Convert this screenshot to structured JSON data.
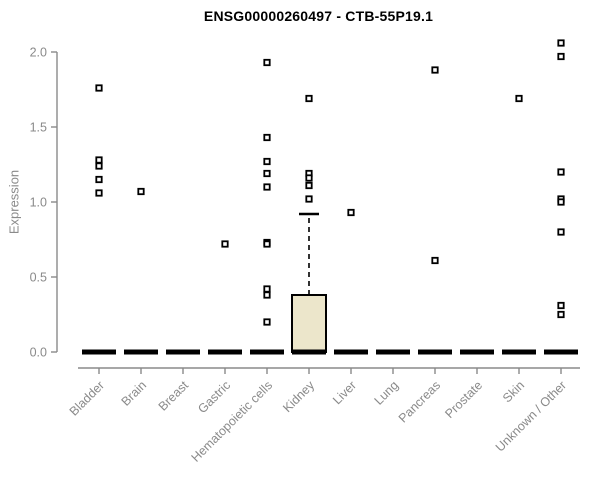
{
  "chart_data": {
    "type": "boxplot",
    "title": "ENSG00000260497 - CTB-55P19.1",
    "ylabel": "Expression",
    "xlabel": "",
    "ylim": [
      0.0,
      2.05
    ],
    "yticks": [
      0.0,
      0.5,
      1.0,
      1.5,
      2.0
    ],
    "grid": false,
    "legend": "none",
    "categories": [
      "Bladder",
      "Brain",
      "Breast",
      "Gastric",
      "Hematopoietic cells",
      "Kidney",
      "Liver",
      "Lung",
      "Pancreas",
      "Prostate",
      "Skin",
      "Unknown / Other"
    ],
    "series": [
      {
        "name": "Bladder",
        "box": {
          "whisker_low": 0,
          "q1": 0,
          "median": 0,
          "q3": 0,
          "whisker_high": 0
        },
        "outliers": [
          1.76,
          1.28,
          1.24,
          1.15,
          1.06
        ]
      },
      {
        "name": "Brain",
        "box": {
          "whisker_low": 0,
          "q1": 0,
          "median": 0,
          "q3": 0,
          "whisker_high": 0
        },
        "outliers": [
          1.07
        ]
      },
      {
        "name": "Breast",
        "box": {
          "whisker_low": 0,
          "q1": 0,
          "median": 0,
          "q3": 0,
          "whisker_high": 0
        },
        "outliers": []
      },
      {
        "name": "Gastric",
        "box": {
          "whisker_low": 0,
          "q1": 0,
          "median": 0,
          "q3": 0,
          "whisker_high": 0
        },
        "outliers": [
          0.72
        ]
      },
      {
        "name": "Hematopoietic cells",
        "box": {
          "whisker_low": 0,
          "q1": 0,
          "median": 0,
          "q3": 0,
          "whisker_high": 0
        },
        "outliers": [
          1.93,
          1.43,
          1.27,
          1.19,
          1.1,
          0.73,
          0.72,
          0.42,
          0.38,
          0.2
        ]
      },
      {
        "name": "Kidney",
        "box": {
          "whisker_low": 0,
          "q1": 0,
          "median": 0,
          "q3": 0.38,
          "whisker_high": 0.92
        },
        "outliers": [
          1.69,
          1.19,
          1.16,
          1.11,
          1.02
        ]
      },
      {
        "name": "Liver",
        "box": {
          "whisker_low": 0,
          "q1": 0,
          "median": 0,
          "q3": 0,
          "whisker_high": 0
        },
        "outliers": [
          0.93
        ]
      },
      {
        "name": "Lung",
        "box": {
          "whisker_low": 0,
          "q1": 0,
          "median": 0,
          "q3": 0,
          "whisker_high": 0
        },
        "outliers": []
      },
      {
        "name": "Pancreas",
        "box": {
          "whisker_low": 0,
          "q1": 0,
          "median": 0,
          "q3": 0,
          "whisker_high": 0
        },
        "outliers": [
          1.88,
          0.61
        ]
      },
      {
        "name": "Prostate",
        "box": {
          "whisker_low": 0,
          "q1": 0,
          "median": 0,
          "q3": 0,
          "whisker_high": 0
        },
        "outliers": []
      },
      {
        "name": "Skin",
        "box": {
          "whisker_low": 0,
          "q1": 0,
          "median": 0,
          "q3": 0,
          "whisker_high": 0
        },
        "outliers": [
          1.69
        ]
      },
      {
        "name": "Unknown / Other",
        "box": {
          "whisker_low": 0,
          "q1": 0,
          "median": 0,
          "q3": 0,
          "whisker_high": 0
        },
        "outliers": [
          2.06,
          1.97,
          1.2,
          1.02,
          1.0,
          0.8,
          0.31,
          0.25
        ]
      }
    ],
    "colors": {
      "background": "#ffffff",
      "box_fill": "#ECE6CB",
      "box_stroke": "#000000",
      "median": "#000000",
      "whisker": "#000000",
      "outlier_stroke": "#000000",
      "outlier_fill": "#ffffff",
      "axis": "#8a8a8a",
      "tick_label": "#8a8a8a",
      "title": "#000000"
    }
  }
}
